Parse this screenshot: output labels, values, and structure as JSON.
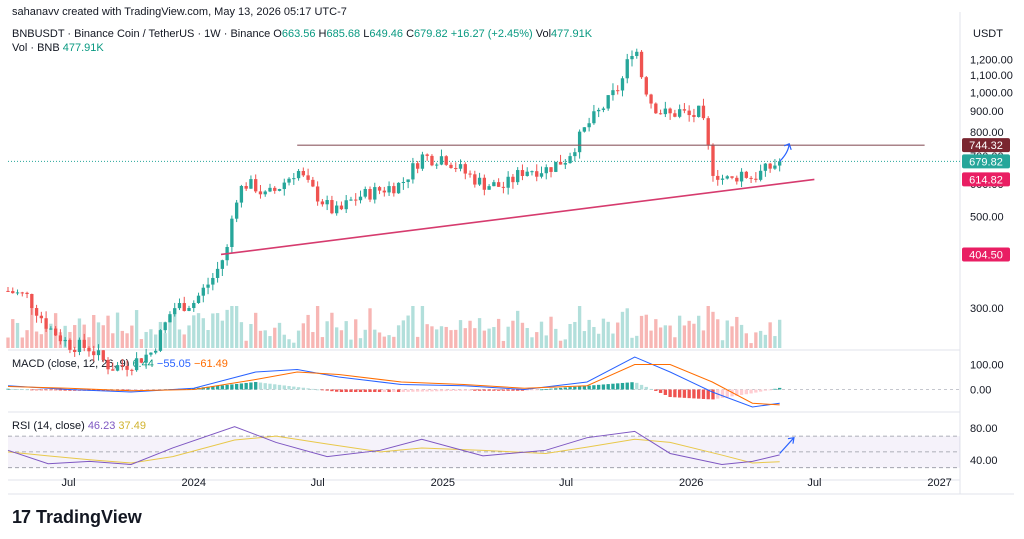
{
  "header": {
    "creator": "sahanavv created with TradingView.com, May 13, 2026 05:17 UTC-7"
  },
  "legend": {
    "symbol": "BNBUSDT · Binance Coin / TetherUS · 1W · Binance",
    "o_label": "O",
    "o_value": "663.56",
    "h_label": "H",
    "h_value": "685.68",
    "l_label": "L",
    "l_value": "649.46",
    "c_label": "C",
    "c_value": "679.82",
    "change": "+16.27 (+2.45%)",
    "vol_label": "Vol",
    "vol_value": "477.91K",
    "vol2_label": "Vol · BNB",
    "vol2_value": "477.91K"
  },
  "macd_legend": {
    "label": "MACD (close, 12, 26, 9)",
    "hist": "6.44",
    "macd": "−55.05",
    "signal": "−61.49"
  },
  "rsi_legend": {
    "label": "RSI (14, close)",
    "rsi": "46.23",
    "ma": "37.49"
  },
  "currency": "USDT",
  "brand": {
    "logo_glyph": "17",
    "name": "TradingView"
  },
  "colors": {
    "up": "#26a69a",
    "down": "#ef5350",
    "vol_up": "#b2dfdb",
    "vol_down": "#f7b6b4",
    "resistance": "#8e5a62",
    "support": "#d63b6e",
    "macd": "#2962ff",
    "signal": "#ff6d00",
    "rsi": "#7e57c2",
    "rsi_ma": "#e8c84a",
    "arrow": "#2962ff",
    "tag_resistance": "#7a2630",
    "tag_close": "#26a69a",
    "tag_support": "#e91e63",
    "tag_low": "#e91e63"
  },
  "chart_data": {
    "type": "candlestick",
    "interval": "1W",
    "price_scale": "log",
    "price_ticks": [
      "1,200.00",
      "1,100.00",
      "1,000.00",
      "900.00",
      "800.00",
      "700.00",
      "600.00",
      "500.00",
      "400.00",
      "300.00"
    ],
    "price_tick_values": [
      1200,
      1100,
      1000,
      900,
      800,
      700,
      600,
      500,
      400,
      300
    ],
    "price_range": [
      240,
      1480
    ],
    "date_range": [
      "2023-04-03",
      "2027-01-31"
    ],
    "time_ticks": [
      {
        "label": "Jul",
        "date": "2023-07-01"
      },
      {
        "label": "2024",
        "date": "2024-01-01"
      },
      {
        "label": "Jul",
        "date": "2024-07-01"
      },
      {
        "label": "2025",
        "date": "2025-01-01"
      },
      {
        "label": "Jul",
        "date": "2025-07-01"
      },
      {
        "label": "2026",
        "date": "2026-01-01"
      },
      {
        "label": "Jul",
        "date": "2026-07-01"
      },
      {
        "label": "2027",
        "date": "2027-01-01"
      }
    ],
    "price_series": [
      {
        "date": "2023-04-03",
        "close": 330
      },
      {
        "date": "2023-05-01",
        "close": 320
      },
      {
        "date": "2023-06-01",
        "close": 270
      },
      {
        "date": "2023-07-01",
        "close": 245
      },
      {
        "date": "2023-08-01",
        "close": 240
      },
      {
        "date": "2023-09-01",
        "close": 215
      },
      {
        "date": "2023-10-01",
        "close": 220
      },
      {
        "date": "2023-11-01",
        "close": 235
      },
      {
        "date": "2023-12-01",
        "close": 300
      },
      {
        "date": "2024-01-01",
        "close": 310
      },
      {
        "date": "2024-02-01",
        "close": 360
      },
      {
        "date": "2024-02-20",
        "close": 420
      },
      {
        "date": "2024-03-01",
        "close": 550
      },
      {
        "date": "2024-03-15",
        "close": 600
      },
      {
        "date": "2024-04-01",
        "close": 590
      },
      {
        "date": "2024-04-15",
        "close": 560
      },
      {
        "date": "2024-05-01",
        "close": 580
      },
      {
        "date": "2024-06-01",
        "close": 650
      },
      {
        "date": "2024-06-15",
        "close": 600
      },
      {
        "date": "2024-07-01",
        "close": 560
      },
      {
        "date": "2024-07-20",
        "close": 520
      },
      {
        "date": "2024-08-01",
        "close": 510
      },
      {
        "date": "2024-08-15",
        "close": 540
      },
      {
        "date": "2024-09-01",
        "close": 560
      },
      {
        "date": "2024-10-01",
        "close": 580
      },
      {
        "date": "2024-11-01",
        "close": 600
      },
      {
        "date": "2024-12-01",
        "close": 700
      },
      {
        "date": "2024-12-20",
        "close": 690
      },
      {
        "date": "2025-01-01",
        "close": 700
      },
      {
        "date": "2025-02-01",
        "close": 640
      },
      {
        "date": "2025-03-01",
        "close": 600
      },
      {
        "date": "2025-04-01",
        "close": 590
      },
      {
        "date": "2025-05-01",
        "close": 650
      },
      {
        "date": "2025-06-01",
        "close": 650
      },
      {
        "date": "2025-07-01",
        "close": 690
      },
      {
        "date": "2025-07-20",
        "close": 770
      },
      {
        "date": "2025-08-01",
        "close": 830
      },
      {
        "date": "2025-09-01",
        "close": 950
      },
      {
        "date": "2025-09-20",
        "close": 1050
      },
      {
        "date": "2025-10-01",
        "close": 1200
      },
      {
        "date": "2025-10-10",
        "close": 1330
      },
      {
        "date": "2025-10-20",
        "close": 1100
      },
      {
        "date": "2025-11-01",
        "close": 960
      },
      {
        "date": "2025-11-15",
        "close": 900
      },
      {
        "date": "2025-12-01",
        "close": 880
      },
      {
        "date": "2025-12-15",
        "close": 900
      },
      {
        "date": "2026-01-01",
        "close": 870
      },
      {
        "date": "2026-01-15",
        "close": 900
      },
      {
        "date": "2026-02-01",
        "close": 650
      },
      {
        "date": "2026-02-15",
        "close": 620
      },
      {
        "date": "2026-03-01",
        "close": 610
      },
      {
        "date": "2026-03-15",
        "close": 640
      },
      {
        "date": "2026-04-01",
        "close": 620
      },
      {
        "date": "2026-04-15",
        "close": 640
      },
      {
        "date": "2026-05-01",
        "close": 663
      },
      {
        "date": "2026-05-11",
        "close": 679.82
      }
    ],
    "resistance_line": {
      "price": 744.32,
      "from": "2024-06-01",
      "to": "2026-12-10"
    },
    "support_line": {
      "from": {
        "date": "2024-02-10",
        "price": 404.5
      },
      "to": {
        "date": "2026-07-01",
        "price": 614.82
      }
    },
    "projection_arrow": {
      "from": {
        "date": "2026-05-11",
        "price": 680
      },
      "to": {
        "date": "2026-05-25",
        "price": 750
      }
    },
    "price_tags": [
      {
        "label": "744.32",
        "value": 744.32,
        "kind": "tag_resistance"
      },
      {
        "label": "679.82",
        "value": 679.82,
        "kind": "tag_close"
      },
      {
        "label": "614.82",
        "value": 614.82,
        "kind": "tag_support"
      },
      {
        "label": "404.50",
        "value": 404.5,
        "kind": "tag_low"
      }
    ],
    "close_ref_line": 679.82,
    "macd": {
      "ticks": [
        "100.00",
        "0.00"
      ],
      "tick_values": [
        100,
        0
      ],
      "range": [
        -90,
        150
      ],
      "values": [
        {
          "date": "2023-04-03",
          "macd": 15,
          "signal": 12
        },
        {
          "date": "2023-07-01",
          "macd": 0,
          "signal": 5
        },
        {
          "date": "2023-10-01",
          "macd": -10,
          "signal": -5
        },
        {
          "date": "2024-01-01",
          "macd": 5,
          "signal": 0
        },
        {
          "date": "2024-04-01",
          "macd": 70,
          "signal": 40
        },
        {
          "date": "2024-06-01",
          "macd": 80,
          "signal": 70
        },
        {
          "date": "2024-08-01",
          "macd": 50,
          "signal": 60
        },
        {
          "date": "2024-11-01",
          "macd": 20,
          "signal": 30
        },
        {
          "date": "2025-02-01",
          "macd": 15,
          "signal": 20
        },
        {
          "date": "2025-05-01",
          "macd": 0,
          "signal": 5
        },
        {
          "date": "2025-08-01",
          "macd": 30,
          "signal": 15
        },
        {
          "date": "2025-10-10",
          "macd": 130,
          "signal": 100
        },
        {
          "date": "2025-12-01",
          "macd": 70,
          "signal": 100
        },
        {
          "date": "2026-02-01",
          "macd": -10,
          "signal": 30
        },
        {
          "date": "2026-04-01",
          "macd": -70,
          "signal": -55
        },
        {
          "date": "2026-05-11",
          "macd": -55.05,
          "signal": -61.49
        }
      ]
    },
    "rsi": {
      "ticks": [
        "80.00",
        "40.00"
      ],
      "tick_values": [
        80,
        40
      ],
      "range": [
        22,
        98
      ],
      "band": [
        30,
        70
      ],
      "values": [
        {
          "date": "2023-04-03",
          "rsi": 52,
          "ma": 50
        },
        {
          "date": "2023-06-01",
          "rsi": 35,
          "ma": 45
        },
        {
          "date": "2023-08-01",
          "rsi": 38,
          "ma": 40
        },
        {
          "date": "2023-10-01",
          "rsi": 34,
          "ma": 36
        },
        {
          "date": "2023-12-01",
          "rsi": 55,
          "ma": 44
        },
        {
          "date": "2024-03-01",
          "rsi": 82,
          "ma": 65
        },
        {
          "date": "2024-05-01",
          "rsi": 62,
          "ma": 70
        },
        {
          "date": "2024-07-15",
          "rsi": 44,
          "ma": 60
        },
        {
          "date": "2024-10-01",
          "rsi": 52,
          "ma": 50
        },
        {
          "date": "2024-12-01",
          "rsi": 66,
          "ma": 55
        },
        {
          "date": "2025-03-01",
          "rsi": 45,
          "ma": 52
        },
        {
          "date": "2025-06-01",
          "rsi": 52,
          "ma": 48
        },
        {
          "date": "2025-08-01",
          "rsi": 68,
          "ma": 56
        },
        {
          "date": "2025-10-10",
          "rsi": 76,
          "ma": 66
        },
        {
          "date": "2025-12-01",
          "rsi": 48,
          "ma": 62
        },
        {
          "date": "2026-02-15",
          "rsi": 34,
          "ma": 46
        },
        {
          "date": "2026-04-01",
          "rsi": 38,
          "ma": 36
        },
        {
          "date": "2026-05-11",
          "rsi": 46.23,
          "ma": 37.49
        }
      ],
      "arrow": {
        "from": {
          "date": "2026-05-11",
          "rsi": 48
        },
        "to": {
          "date": "2026-06-01",
          "rsi": 68
        }
      }
    }
  }
}
